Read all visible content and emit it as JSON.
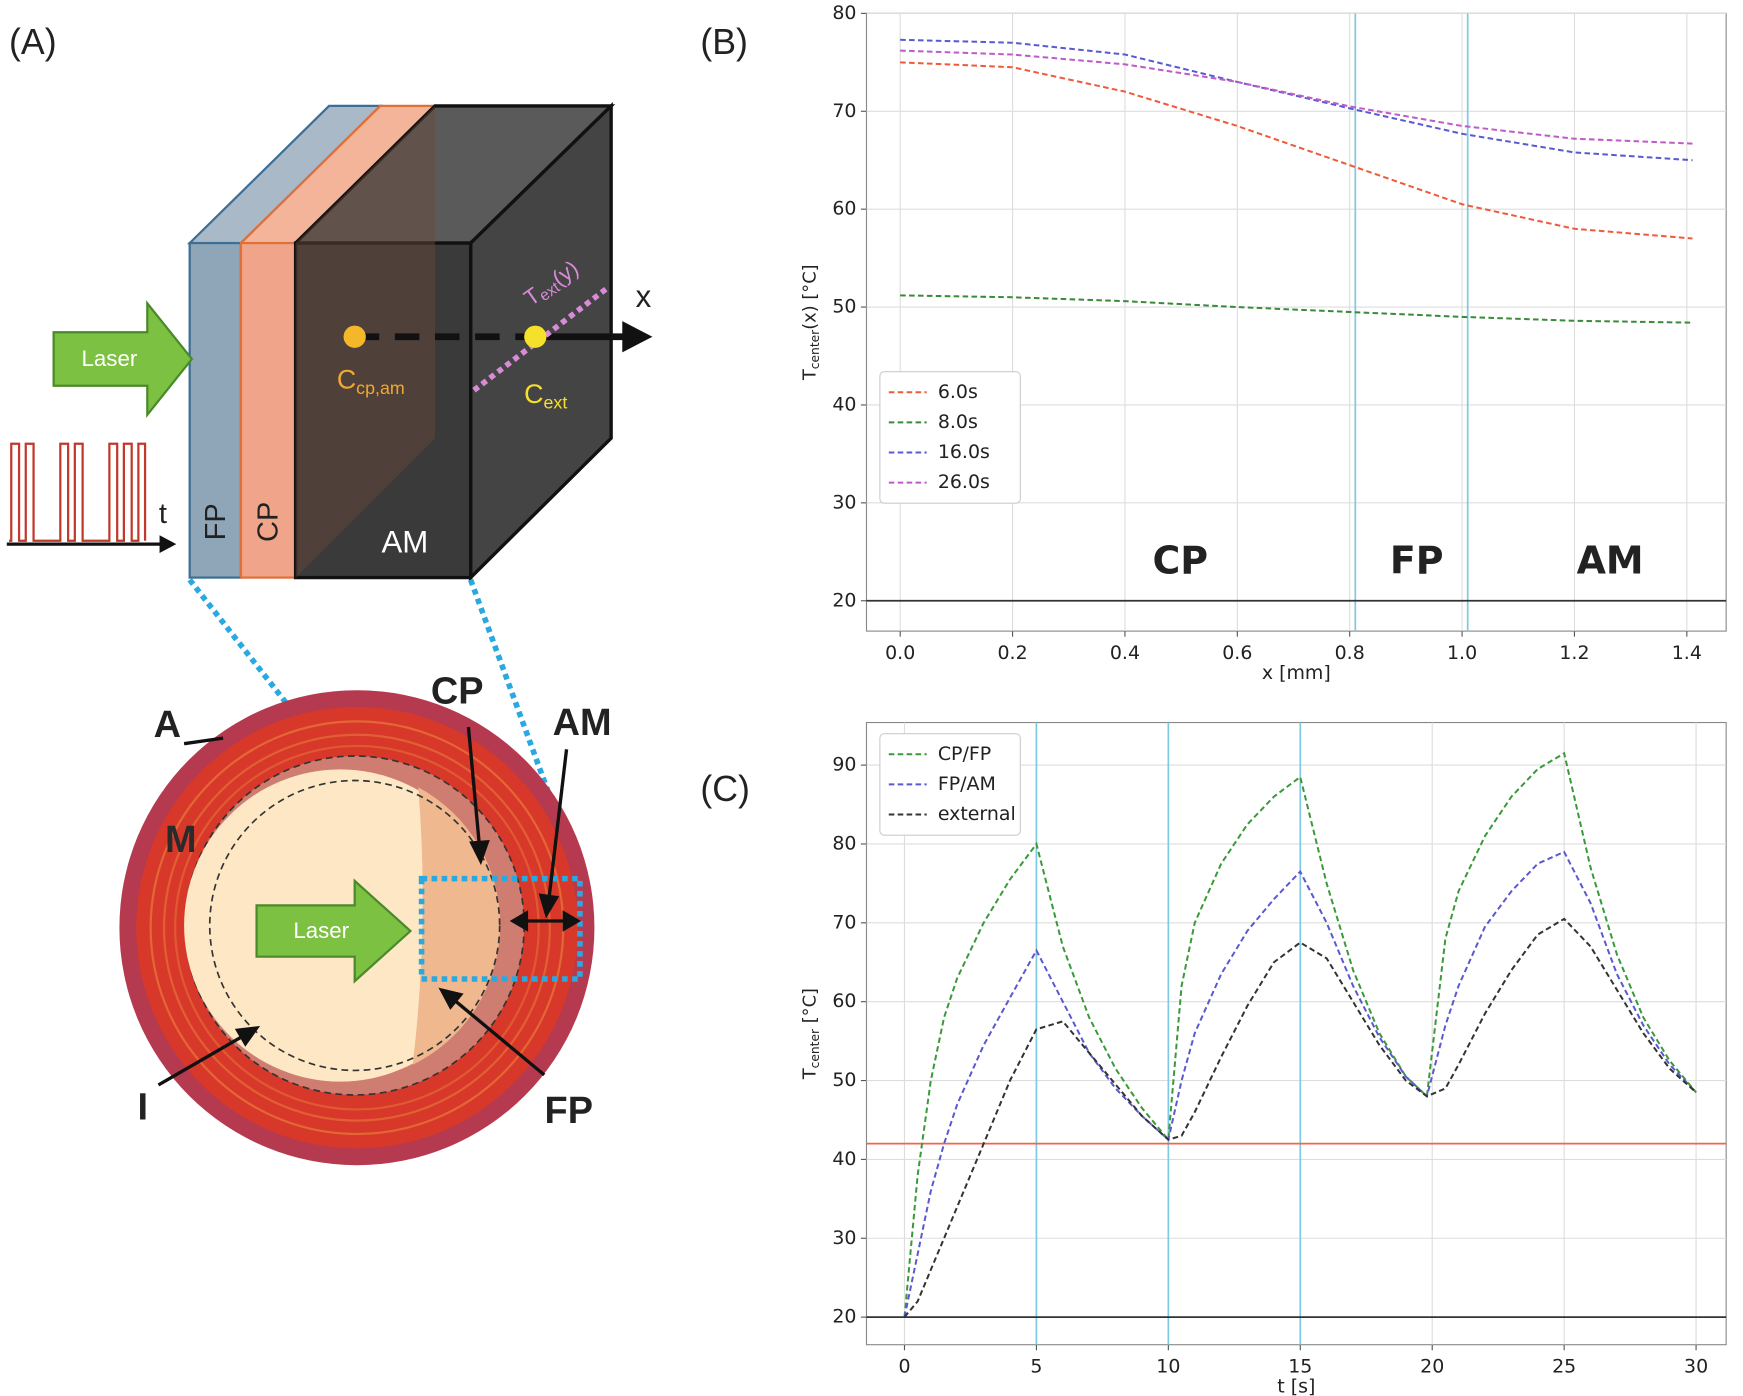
{
  "diagram": {
    "panel_label": "(A)",
    "laser_top": "Laser",
    "time_axis": "t",
    "layer_fp": "FP",
    "layer_cp": "CP",
    "layer_am": "AM",
    "axis_x": "x",
    "t_ext": {
      "base": "T",
      "sub": "ext",
      "rest": "(y)"
    },
    "c_cp_am": {
      "base": "C",
      "sub": "cp,am"
    },
    "c_ext": {
      "base": "C",
      "sub": "ext"
    },
    "label_a": "A",
    "label_m": "M",
    "label_i": "I",
    "label_cp": "CP",
    "label_am": "AM",
    "label_fp": "FP",
    "laser_inner": "Laser"
  },
  "chart_data": [
    {
      "type": "line",
      "panel_label": "(B)",
      "xlabel": "x [mm]",
      "ylabel": "T",
      "ylabel_sub": "center",
      "ylabel_suffix": "(x) [°C]",
      "x": [
        0,
        0.2,
        0.4,
        0.6,
        0.8,
        1.0,
        1.2,
        1.41
      ],
      "series": [
        {
          "name": "6.0s",
          "color": "#f05a3a",
          "values": [
            75,
            74.5,
            72,
            68.5,
            64.5,
            60.5,
            58,
            57
          ]
        },
        {
          "name": "8.0s",
          "color": "#3a8a3a",
          "values": [
            51.2,
            51,
            50.6,
            50,
            49.5,
            49,
            48.6,
            48.4
          ]
        },
        {
          "name": "16.0s",
          "color": "#5a5ad0",
          "values": [
            77.3,
            77,
            75.8,
            73,
            70.3,
            67.7,
            65.8,
            65
          ]
        },
        {
          "name": "26.0s",
          "color": "#c05ac8",
          "values": [
            76.2,
            75.8,
            74.8,
            73,
            70.5,
            68.5,
            67.2,
            66.7
          ]
        }
      ],
      "xlim": [
        -0.06,
        1.47
      ],
      "ylim": [
        16.9,
        80
      ],
      "xticks": [
        {
          "value": 0,
          "label": "0.0"
        },
        {
          "value": 0.2,
          "label": "0.2"
        },
        {
          "value": 0.4,
          "label": "0.4"
        },
        {
          "value": 0.6,
          "label": "0.6"
        },
        {
          "value": 0.8,
          "label": "0.8"
        },
        {
          "value": 1.0,
          "label": "1.0"
        },
        {
          "value": 1.2,
          "label": "1.2"
        },
        {
          "value": 1.4,
          "label": "1.4"
        }
      ],
      "yticks": [
        20,
        30,
        40,
        50,
        60,
        70,
        80
      ],
      "grid": true,
      "legend": "center left",
      "reference_lines": {
        "x": [
          0.81,
          1.01
        ],
        "x_color": "#7ec8e3",
        "y": [
          {
            "value": 20,
            "color": "#333333"
          }
        ]
      },
      "annotations": [
        "CP",
        "FP",
        "AM"
      ]
    },
    {
      "type": "line",
      "panel_label": "(C)",
      "xlabel": "t [s]",
      "ylabel": "T",
      "ylabel_sub": "center",
      "ylabel_suffix": " [°C]",
      "x": [
        0,
        0.5,
        1,
        1.5,
        2,
        3,
        4,
        5,
        6,
        7,
        8,
        9,
        10,
        10.5,
        11,
        12,
        13,
        14,
        15,
        16,
        17,
        18,
        19,
        19.8,
        20.5,
        21,
        22,
        23,
        24,
        25,
        26,
        27,
        28,
        29,
        30
      ],
      "series": [
        {
          "name": "CP/FP",
          "color": "#3a9a3a",
          "values": [
            20,
            38,
            50,
            58,
            63,
            70,
            75.5,
            80,
            67,
            58,
            51.5,
            46.5,
            42.5,
            62,
            70,
            77.5,
            82.5,
            86,
            88.5,
            75,
            64,
            56,
            50.5,
            48,
            68,
            74,
            81,
            86,
            89.5,
            91.5,
            77,
            66,
            58,
            52.5,
            48.5
          ]
        },
        {
          "name": "FP/AM",
          "color": "#5a5ad0",
          "values": [
            20,
            28,
            36,
            42,
            47,
            54.5,
            60.5,
            66.5,
            60,
            53.5,
            49,
            45.5,
            42.5,
            50,
            56,
            63.5,
            69,
            73,
            76.5,
            70,
            62,
            55.5,
            50.5,
            48,
            57,
            62,
            69.5,
            74,
            77.5,
            79,
            72.5,
            63.5,
            57,
            52,
            48.5
          ]
        },
        {
          "name": "external",
          "color": "#333333",
          "values": [
            20,
            22,
            26,
            30,
            34,
            42,
            50,
            56.5,
            57.5,
            53.5,
            49.5,
            45.5,
            42.5,
            43,
            46,
            53,
            59.5,
            65,
            67.5,
            65.5,
            60,
            54.5,
            50,
            48,
            49,
            52,
            58.5,
            64,
            68.5,
            70.5,
            67,
            61.5,
            56,
            51.5,
            48.5
          ]
        }
      ],
      "xlim": [
        -1.44,
        31.14
      ],
      "ylim": [
        16.5,
        95.4
      ],
      "xticks": [
        0,
        5,
        10,
        15,
        20,
        25,
        30
      ],
      "yticks": [
        20,
        30,
        40,
        50,
        60,
        70,
        80,
        90
      ],
      "grid": true,
      "legend": "upper left",
      "reference_lines": {
        "x": [
          5,
          10,
          15
        ],
        "x_color": "#7ec8e3",
        "y": [
          {
            "value": 20,
            "color": "#333333"
          },
          {
            "value": 42,
            "color": "#f0664a"
          }
        ]
      }
    }
  ]
}
